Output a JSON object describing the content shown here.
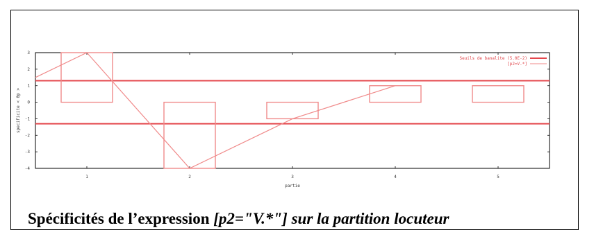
{
  "caption": {
    "lead": "Spécificités de l’expression ",
    "query": "[p2=\"V.*\"] sur la partition locuteur"
  },
  "chart_data": {
    "type": "bar",
    "categories": [
      "1",
      "2",
      "3",
      "4",
      "5"
    ],
    "series": [
      {
        "name": "[p2=V.*]",
        "values": [
          3,
          -4,
          -1,
          1,
          1
        ]
      }
    ],
    "thresholds": {
      "label": "Seuils de banalite (5.0E-2)",
      "values": [
        1.3,
        -1.3
      ]
    },
    "line_start_value": 1.5,
    "xlabel": "partie",
    "ylabel": "specificite < 0p >",
    "ylim": [
      -4,
      3
    ],
    "yticks": [
      -4,
      -3,
      -2,
      -1,
      0,
      1,
      2,
      3
    ],
    "grid": false,
    "legend_position": "top-right",
    "colors": {
      "series": "#f08a8a",
      "threshold": "#e4474c"
    }
  }
}
